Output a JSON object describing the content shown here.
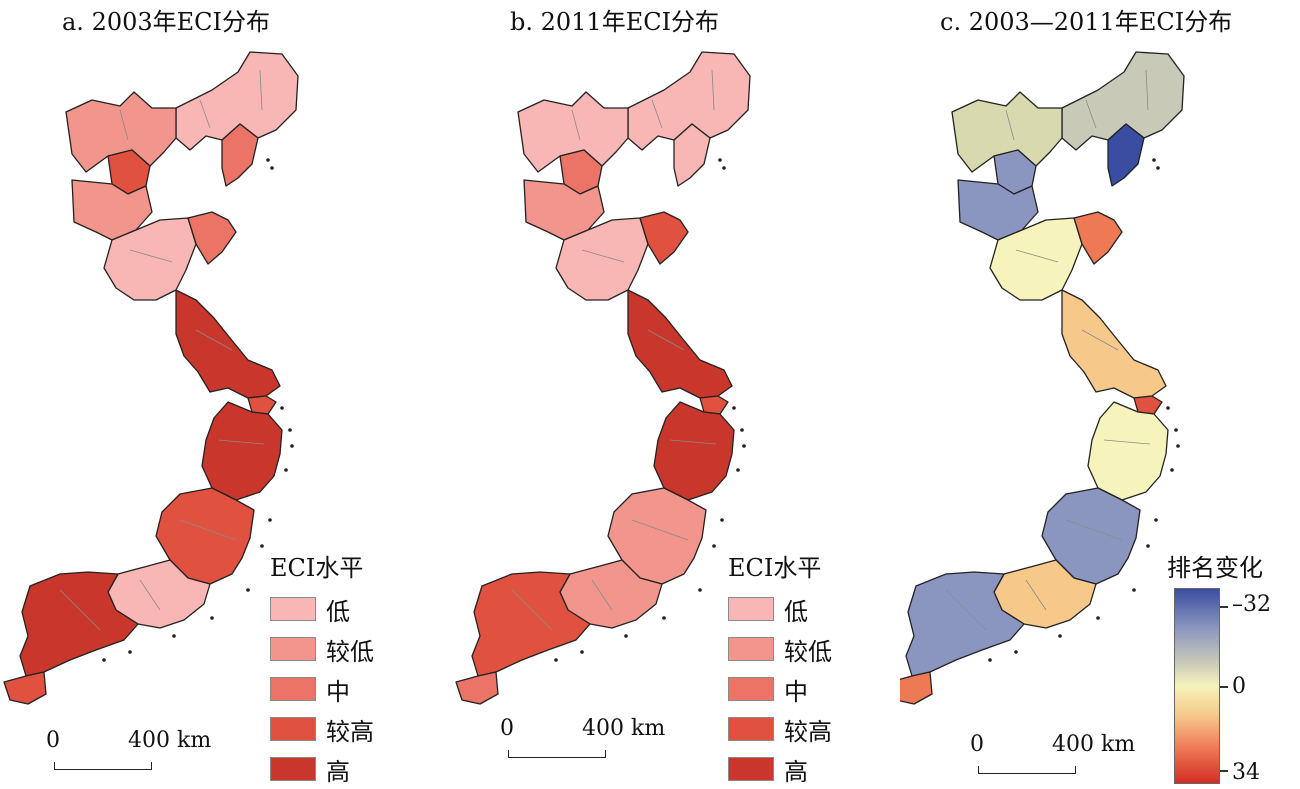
{
  "panels": [
    {
      "title": "a. 2003年ECI分布",
      "legend_title": "ECI水平",
      "legend": [
        {
          "label": "低",
          "color": "#f8b6b4"
        },
        {
          "label": "较低",
          "color": "#f2958d"
        },
        {
          "label": "中",
          "color": "#eb7466"
        },
        {
          "label": "较高",
          "color": "#e0523f"
        },
        {
          "label": "高",
          "color": "#c9362b"
        }
      ],
      "scale_zero": "0",
      "scale_km": "400 km"
    },
    {
      "title": "b. 2011年ECI分布",
      "legend_title": "ECI水平",
      "legend": [
        {
          "label": "低",
          "color": "#f8b6b4"
        },
        {
          "label": "较低",
          "color": "#f2958d"
        },
        {
          "label": "中",
          "color": "#eb7466"
        },
        {
          "label": "较高",
          "color": "#e0523f"
        },
        {
          "label": "高",
          "color": "#c9362b"
        }
      ],
      "scale_zero": "0",
      "scale_km": "400 km"
    },
    {
      "title": "c. 2003—2011年ECI分布",
      "colorbar_title": "排名变化",
      "colorbar_top": "–32",
      "colorbar_mid": "0",
      "colorbar_bottom": "34",
      "scale_zero": "0",
      "scale_km": "400 km"
    }
  ],
  "regions": {
    "a": [
      "#f8b6b4",
      "#eb7466",
      "#f2958d",
      "#e0523f",
      "#f2958d",
      "#f8b6b4",
      "#eb7466",
      "#c9362b",
      "#e0523f",
      "#c9362b",
      "#e0523f",
      "#f8b6b4",
      "#c9362b",
      "#e0523f"
    ],
    "b": [
      "#f8b6b4",
      "#f8b6b4",
      "#f8b6b4",
      "#eb7466",
      "#f2958d",
      "#f8b6b4",
      "#e0523f",
      "#c9362b",
      "#e0523f",
      "#c9362b",
      "#f2958d",
      "#f2958d",
      "#e0523f",
      "#eb7466"
    ],
    "c": [
      "#c9c9b8",
      "#3b4da0",
      "#d9d9b0",
      "#8a96bf",
      "#8a96bf",
      "#f7f3bc",
      "#ee7a55",
      "#f6c98b",
      "#e0523f",
      "#f7f3bc",
      "#8a96bf",
      "#f6c98b",
      "#8a96bf",
      "#ee7a55"
    ]
  }
}
